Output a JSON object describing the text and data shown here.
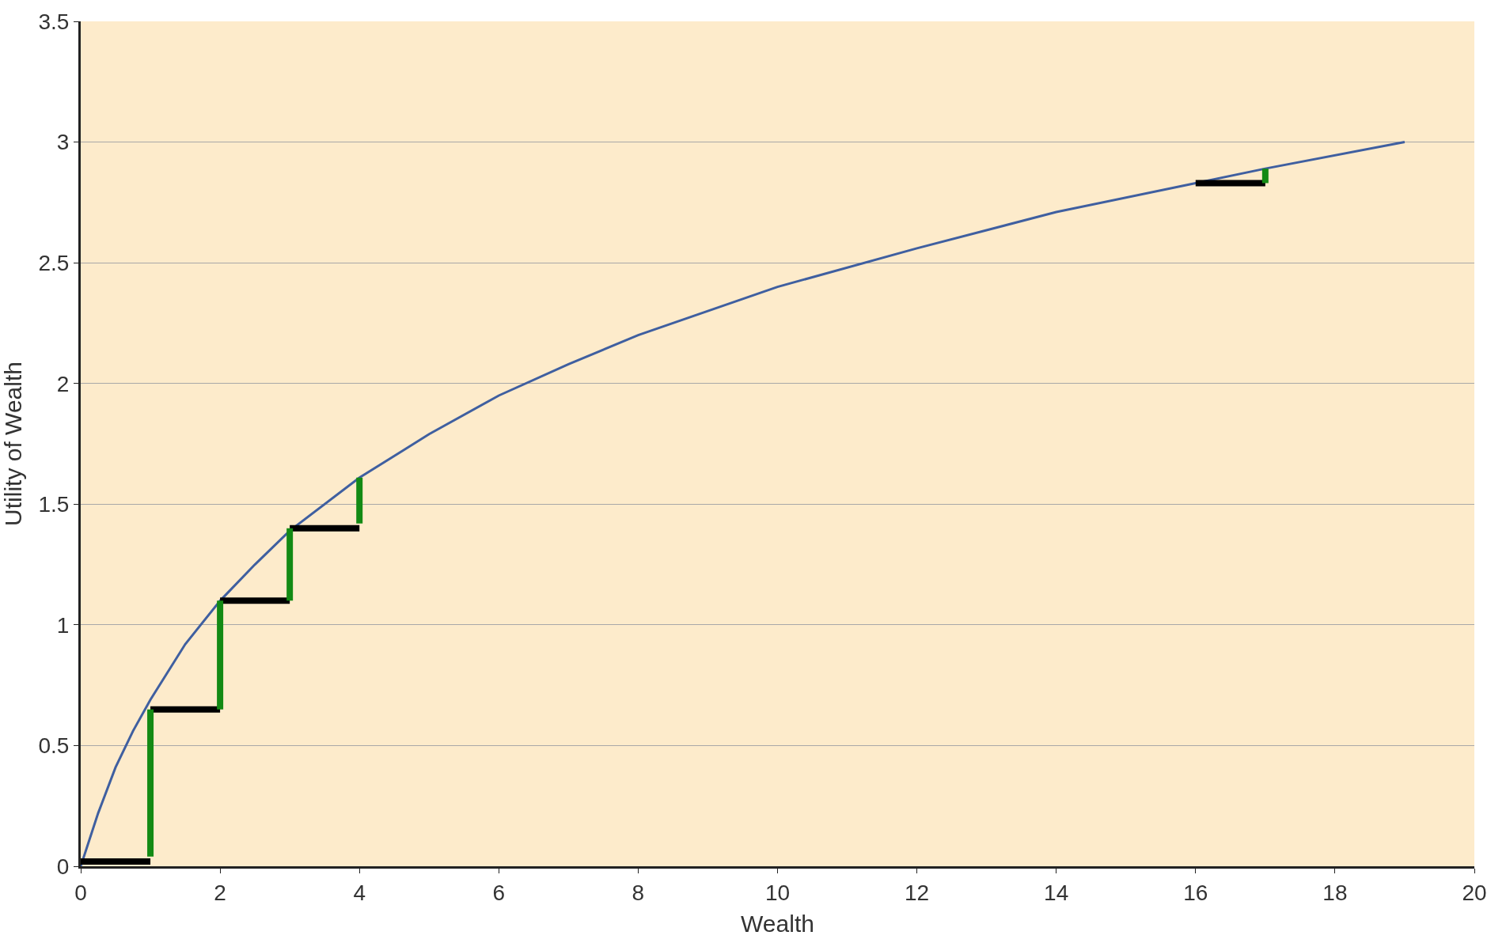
{
  "chart_data": {
    "type": "line",
    "xlabel": "Wealth",
    "ylabel": "Utility of Wealth",
    "xlim": [
      0,
      20
    ],
    "xticks": [
      0,
      2,
      4,
      6,
      8,
      10,
      12,
      14,
      16,
      18,
      20
    ],
    "ylim": [
      0,
      3.5
    ],
    "yticks": [
      0,
      0.5,
      1,
      1.5,
      2,
      2.5,
      3,
      3.5
    ],
    "grid": "y",
    "marker": "none",
    "series": [
      {
        "color": "#3f5fa0",
        "x": [
          0,
          0.25,
          0.5,
          0.75,
          1,
          1.5,
          2,
          2.5,
          3,
          4,
          5,
          6,
          7,
          8,
          10,
          12,
          14,
          16,
          17,
          19
        ],
        "values": [
          0,
          0.22,
          0.41,
          0.56,
          0.69,
          0.92,
          1.1,
          1.25,
          1.39,
          1.61,
          1.79,
          1.95,
          2.08,
          2.2,
          2.4,
          2.56,
          2.71,
          2.83,
          2.89,
          3.0
        ]
      },
      {
        "color": "#000000",
        "x": [
          0,
          1
        ],
        "values": [
          0.02,
          0.02
        ]
      },
      {
        "color": "#000000",
        "x": [
          1,
          2
        ],
        "values": [
          0.65,
          0.65
        ]
      },
      {
        "color": "#000000",
        "x": [
          2,
          3
        ],
        "values": [
          1.1,
          1.1
        ]
      },
      {
        "color": "#000000",
        "x": [
          3,
          4
        ],
        "values": [
          1.4,
          1.4
        ]
      },
      {
        "color": "#000000",
        "x": [
          16,
          17
        ],
        "values": [
          2.83,
          2.83
        ]
      },
      {
        "color": "#138a14",
        "x": [
          1,
          1
        ],
        "values": [
          0.04,
          0.65
        ]
      },
      {
        "color": "#138a14",
        "x": [
          2,
          2
        ],
        "values": [
          0.65,
          1.1
        ]
      },
      {
        "color": "#138a14",
        "x": [
          3,
          3
        ],
        "values": [
          1.1,
          1.4
        ]
      },
      {
        "color": "#138a14",
        "x": [
          4,
          4
        ],
        "values": [
          1.42,
          1.61
        ]
      },
      {
        "color": "#138a14",
        "x": [
          17,
          17
        ],
        "values": [
          2.83,
          2.89
        ]
      }
    ]
  }
}
